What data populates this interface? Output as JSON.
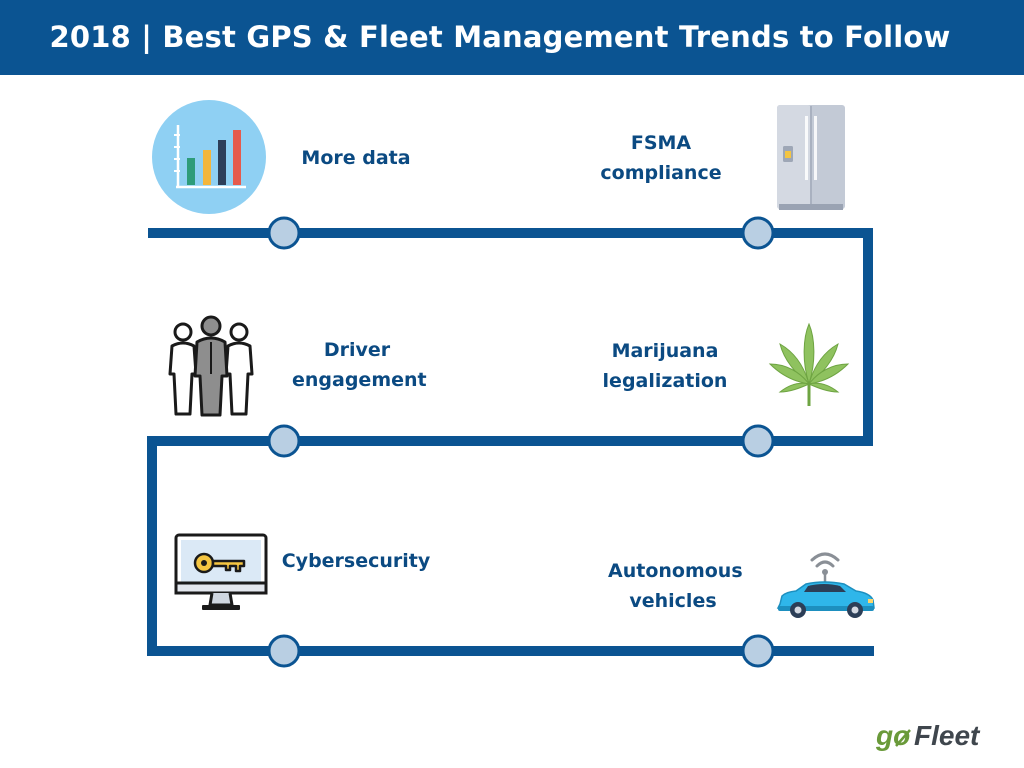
{
  "header": {
    "title": "2018 | Best GPS & Fleet Management Trends to Follow",
    "background": "#0b5492"
  },
  "colors": {
    "path": "#0b5492",
    "node_fill": "#b9cfe3",
    "label": "#0b4a82"
  },
  "trends": [
    {
      "label": "More data",
      "icon": "bar-chart-icon"
    },
    {
      "label": "FSMA compliance",
      "icon": "refrigerator-icon"
    },
    {
      "label": "Driver engagement",
      "icon": "people-icon"
    },
    {
      "label": "Marijuana legalization",
      "icon": "cannabis-leaf-icon"
    },
    {
      "label": "Cybersecurity",
      "icon": "monitor-key-icon"
    },
    {
      "label": "Autonomous vehicles",
      "icon": "connected-car-icon"
    }
  ],
  "logo": {
    "text": "goFleet"
  }
}
